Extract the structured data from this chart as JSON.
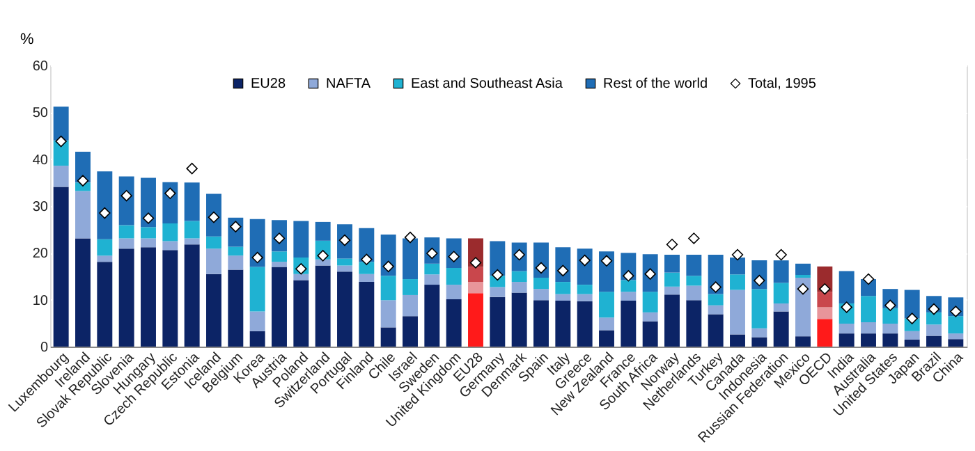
{
  "chart_data": {
    "type": "bar",
    "stacked": true,
    "ylabel": "%",
    "ylim": [
      0,
      60
    ],
    "yticks": [
      0,
      10,
      20,
      30,
      40,
      50,
      60
    ],
    "grid": true,
    "legend": "top",
    "categories": [
      "Luxembourg",
      "Ireland",
      "Slovak Republic",
      "Slovenia",
      "Hungary",
      "Czech Republic",
      "Estonia",
      "Iceland",
      "Belgium",
      "Korea",
      "Austria",
      "Poland",
      "Switzerland",
      "Portugal",
      "Finland",
      "Chile",
      "Israel",
      "Sweden",
      "United Kingdom",
      "EU28",
      "Germany",
      "Denmark",
      "Spain",
      "Italy",
      "Greece",
      "New Zealand",
      "France",
      "South Africa",
      "Norway",
      "Netherlands",
      "Turkey",
      "Canada",
      "Indonesia",
      "Russian Federation",
      "Mexico",
      "OECD",
      "India",
      "Australia",
      "United States",
      "Japan",
      "Brazil",
      "China"
    ],
    "series": [
      {
        "name": "EU28",
        "color": "#0c2466",
        "values": [
          34.1,
          23.1,
          18.1,
          20.9,
          21.2,
          20.6,
          21.8,
          15.5,
          16.4,
          3.3,
          17.0,
          14.2,
          17.3,
          16.0,
          13.8,
          4.1,
          6.5,
          13.2,
          10.1,
          11.4,
          10.6,
          11.5,
          9.9,
          9.8,
          9.7,
          3.5,
          9.8,
          5.4,
          11.1,
          9.9,
          6.9,
          2.6,
          2.0,
          7.5,
          2.2,
          5.9,
          2.8,
          2.8,
          2.8,
          1.5,
          2.3,
          1.6
        ],
        "colors": [
          "#0c2466",
          "#0c2466",
          "#0c2466",
          "#0c2466",
          "#0c2466",
          "#0c2466",
          "#0c2466",
          "#0c2466",
          "#0c2466",
          "#0c2466",
          "#0c2466",
          "#0c2466",
          "#0c2466",
          "#0c2466",
          "#0c2466",
          "#0c2466",
          "#0c2466",
          "#0c2466",
          "#0c2466",
          "#ff1a1a",
          "#0c2466",
          "#0c2466",
          "#0c2466",
          "#0c2466",
          "#0c2466",
          "#0c2466",
          "#0c2466",
          "#0c2466",
          "#0c2466",
          "#0c2466",
          "#0c2466",
          "#0c2466",
          "#0c2466",
          "#0c2466",
          "#0c2466",
          "#ff1a1a",
          "#0c2466",
          "#0c2466",
          "#0c2466",
          "#0c2466",
          "#0c2466",
          "#0c2466"
        ]
      },
      {
        "name": "NAFTA",
        "color": "#8fa9d9",
        "values": [
          4.5,
          10.1,
          1.3,
          2.2,
          1.9,
          1.9,
          1.3,
          5.4,
          3.0,
          4.2,
          1.1,
          1.3,
          1.3,
          1.3,
          1.7,
          5.8,
          4.5,
          2.2,
          3.1,
          2.4,
          2.1,
          2.3,
          2.4,
          1.4,
          1.5,
          2.7,
          1.9,
          1.9,
          1.7,
          3.1,
          1.9,
          9.5,
          1.9,
          1.7,
          12.5,
          2.5,
          2.1,
          2.4,
          2.1,
          1.8,
          2.4,
          1.2
        ],
        "colors": [
          "#8fa9d9",
          "#8fa9d9",
          "#8fa9d9",
          "#8fa9d9",
          "#8fa9d9",
          "#8fa9d9",
          "#8fa9d9",
          "#8fa9d9",
          "#8fa9d9",
          "#8fa9d9",
          "#8fa9d9",
          "#8fa9d9",
          "#8fa9d9",
          "#8fa9d9",
          "#8fa9d9",
          "#8fa9d9",
          "#8fa9d9",
          "#8fa9d9",
          "#8fa9d9",
          "#e8959a",
          "#8fa9d9",
          "#8fa9d9",
          "#8fa9d9",
          "#8fa9d9",
          "#8fa9d9",
          "#8fa9d9",
          "#8fa9d9",
          "#8fa9d9",
          "#8fa9d9",
          "#8fa9d9",
          "#8fa9d9",
          "#8fa9d9",
          "#8fa9d9",
          "#8fa9d9",
          "#8fa9d9",
          "#e8959a",
          "#8fa9d9",
          "#8fa9d9",
          "#8fa9d9",
          "#8fa9d9",
          "#8fa9d9",
          "#8fa9d9"
        ]
      },
      {
        "name": "East and Southeast Asia",
        "color": "#1fb2d2",
        "values": [
          5.4,
          1.8,
          3.5,
          2.8,
          2.4,
          3.8,
          3.7,
          2.6,
          1.9,
          9.5,
          2.2,
          3.5,
          4.0,
          1.5,
          2.6,
          5.2,
          3.4,
          2.3,
          3.6,
          3.2,
          2.4,
          2.3,
          2.4,
          2.6,
          2.0,
          5.5,
          2.5,
          4.4,
          3.0,
          2.1,
          2.4,
          3.3,
          8.4,
          4.4,
          0.6,
          3.3,
          4.3,
          5.6,
          3.3,
          2.7,
          2.6,
          3.7
        ],
        "colors": [
          "#1fb2d2",
          "#1fb2d2",
          "#1fb2d2",
          "#1fb2d2",
          "#1fb2d2",
          "#1fb2d2",
          "#1fb2d2",
          "#1fb2d2",
          "#1fb2d2",
          "#1fb2d2",
          "#1fb2d2",
          "#1fb2d2",
          "#1fb2d2",
          "#1fb2d2",
          "#1fb2d2",
          "#1fb2d2",
          "#1fb2d2",
          "#1fb2d2",
          "#1fb2d2",
          "#c9474c",
          "#1fb2d2",
          "#1fb2d2",
          "#1fb2d2",
          "#1fb2d2",
          "#1fb2d2",
          "#1fb2d2",
          "#1fb2d2",
          "#1fb2d2",
          "#1fb2d2",
          "#1fb2d2",
          "#1fb2d2",
          "#1fb2d2",
          "#1fb2d2",
          "#1fb2d2",
          "#1fb2d2",
          "#c9474c",
          "#1fb2d2",
          "#1fb2d2",
          "#1fb2d2",
          "#1fb2d2",
          "#1fb2d2",
          "#1fb2d2"
        ]
      },
      {
        "name": "Rest of the world",
        "color": "#1f6db5",
        "values": [
          7.2,
          6.6,
          14.5,
          10.4,
          10.5,
          8.8,
          8.2,
          9.1,
          6.2,
          10.2,
          6.7,
          7.8,
          4.0,
          7.3,
          7.2,
          8.8,
          8.7,
          5.6,
          6.3,
          6.1,
          7.4,
          6.1,
          7.5,
          7.4,
          7.7,
          8.6,
          5.8,
          8.0,
          3.8,
          4.5,
          8.4,
          3.6,
          6.1,
          4.8,
          2.4,
          5.4,
          6.9,
          3.6,
          4.1,
          6.1,
          3.5,
          4.0
        ],
        "colors": [
          "#1f6db5",
          "#1f6db5",
          "#1f6db5",
          "#1f6db5",
          "#1f6db5",
          "#1f6db5",
          "#1f6db5",
          "#1f6db5",
          "#1f6db5",
          "#1f6db5",
          "#1f6db5",
          "#1f6db5",
          "#1f6db5",
          "#1f6db5",
          "#1f6db5",
          "#1f6db5",
          "#1f6db5",
          "#1f6db5",
          "#1f6db5",
          "#9b2b2d",
          "#1f6db5",
          "#1f6db5",
          "#1f6db5",
          "#1f6db5",
          "#1f6db5",
          "#1f6db5",
          "#1f6db5",
          "#1f6db5",
          "#1f6db5",
          "#1f6db5",
          "#1f6db5",
          "#1f6db5",
          "#1f6db5",
          "#1f6db5",
          "#1f6db5",
          "#9b2b2d",
          "#1f6db5",
          "#1f6db5",
          "#1f6db5",
          "#1f6db5",
          "#1f6db5",
          "#1f6db5"
        ]
      },
      {
        "name": "Total, 1995",
        "type": "scatter",
        "marker": "diamond",
        "color": "#ffffff",
        "values": [
          43.8,
          35.4,
          28.5,
          32.2,
          27.4,
          32.7,
          38.0,
          27.6,
          25.6,
          19.0,
          23.1,
          16.6,
          19.4,
          22.7,
          18.6,
          17.1,
          23.3,
          19.9,
          19.2,
          17.9,
          15.3,
          19.6,
          16.8,
          16.2,
          18.4,
          18.3,
          15.1,
          15.5,
          21.8,
          23.1,
          12.7,
          19.6,
          14.1,
          19.6,
          12.3,
          12.3,
          8.4,
          14.4,
          8.8,
          6.0,
          8.0,
          7.5
        ]
      }
    ]
  }
}
